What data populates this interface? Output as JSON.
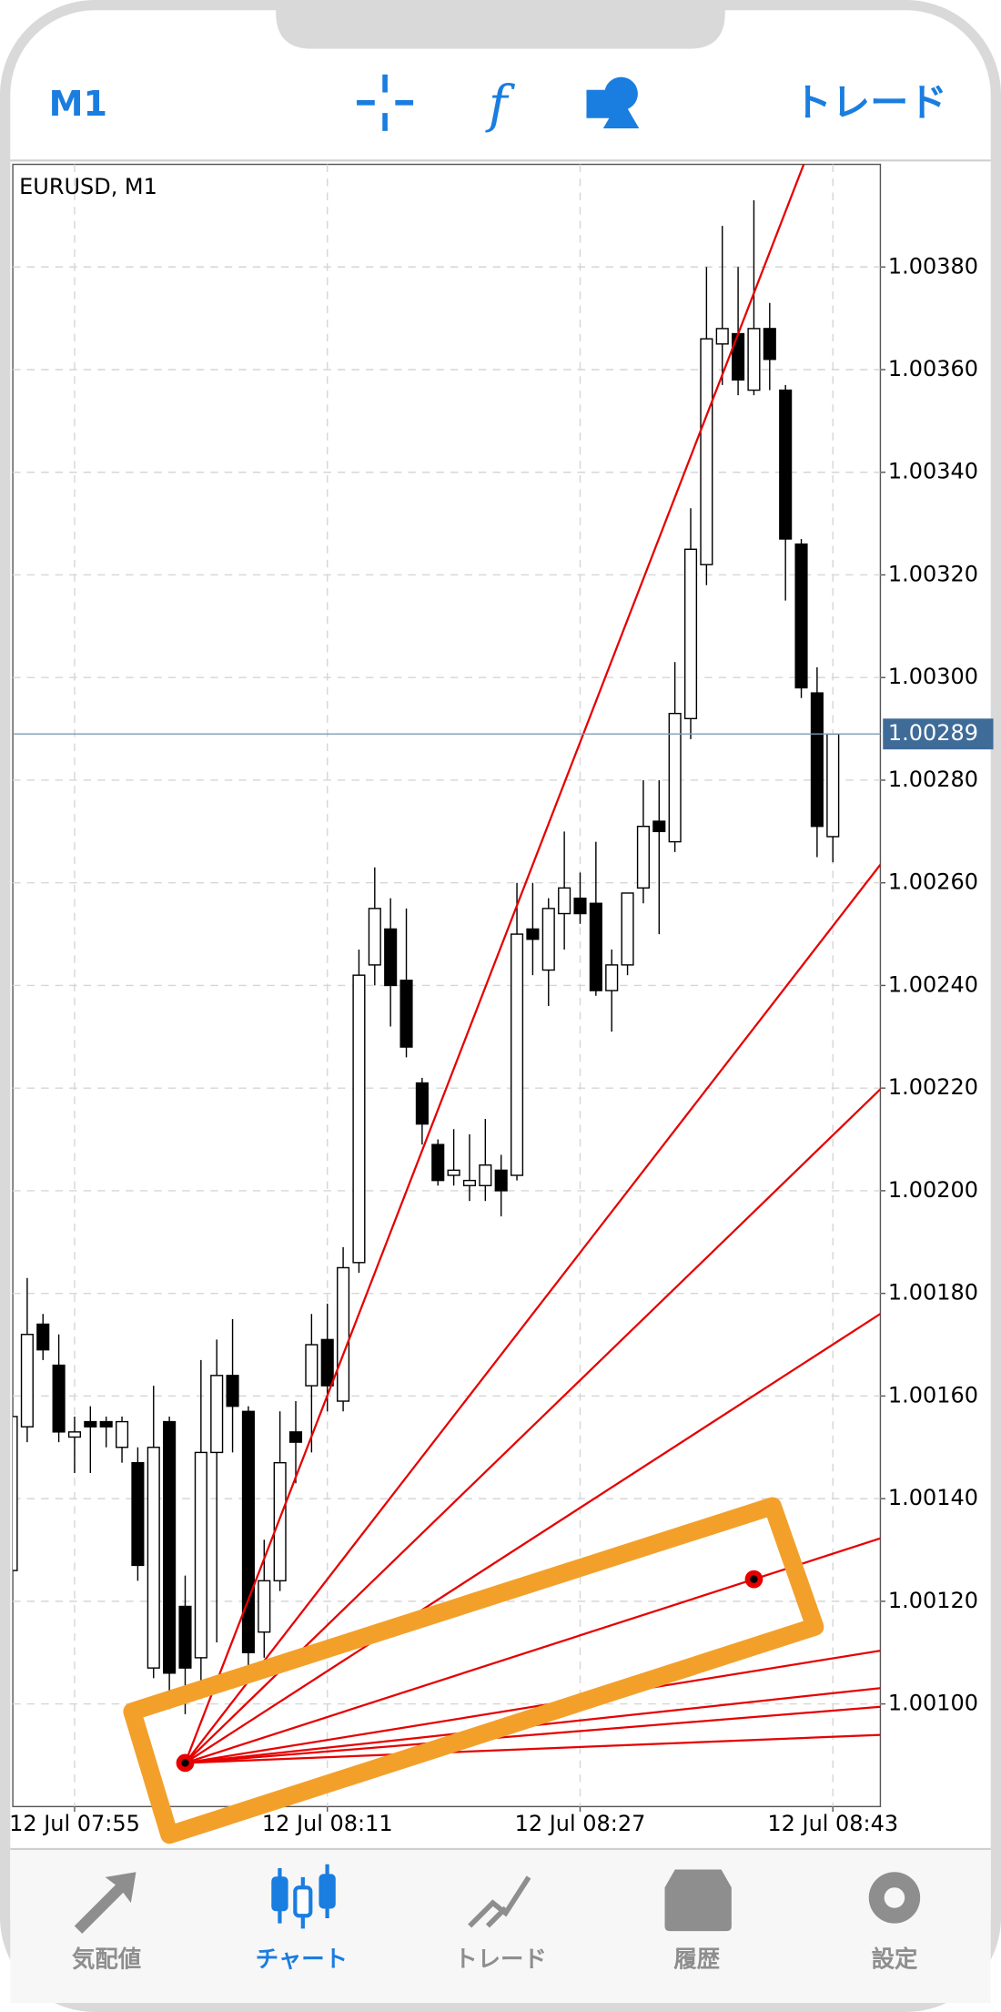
{
  "header": {
    "timeframe": "M1",
    "trade": "トレード"
  },
  "chart_data": {
    "type": "candlestick",
    "title": "EURUSD, M1",
    "x": [
      "12 Jul 07:51",
      "12 Jul 07:52",
      "12 Jul 07:53",
      "12 Jul 07:54",
      "12 Jul 07:55",
      "12 Jul 07:56",
      "12 Jul 07:57",
      "12 Jul 07:58",
      "12 Jul 07:59",
      "12 Jul 08:00",
      "12 Jul 08:01",
      "12 Jul 08:02",
      "12 Jul 08:03",
      "12 Jul 08:04",
      "12 Jul 08:05",
      "12 Jul 08:06",
      "12 Jul 08:07",
      "12 Jul 08:08",
      "12 Jul 08:09",
      "12 Jul 08:10",
      "12 Jul 08:11",
      "12 Jul 08:12",
      "12 Jul 08:13",
      "12 Jul 08:14",
      "12 Jul 08:15",
      "12 Jul 08:16",
      "12 Jul 08:17",
      "12 Jul 08:18",
      "12 Jul 08:19",
      "12 Jul 08:20",
      "12 Jul 08:21",
      "12 Jul 08:22",
      "12 Jul 08:23",
      "12 Jul 08:24",
      "12 Jul 08:25",
      "12 Jul 08:26",
      "12 Jul 08:27",
      "12 Jul 08:28",
      "12 Jul 08:29",
      "12 Jul 08:30",
      "12 Jul 08:31",
      "12 Jul 08:32",
      "12 Jul 08:33",
      "12 Jul 08:34",
      "12 Jul 08:35",
      "12 Jul 08:36",
      "12 Jul 08:37",
      "12 Jul 08:38",
      "12 Jul 08:39",
      "12 Jul 08:40",
      "12 Jul 08:41",
      "12 Jul 08:42",
      "12 Jul 08:43"
    ],
    "open": [
      1.00126,
      1.00154,
      1.00174,
      1.00166,
      1.00152,
      1.00155,
      1.00155,
      1.0015,
      1.00147,
      1.00107,
      1.00155,
      1.00119,
      1.00109,
      1.00149,
      1.00164,
      1.00157,
      1.00114,
      1.00124,
      1.00153,
      1.00162,
      1.00171,
      1.00159,
      1.00186,
      1.00244,
      1.00251,
      1.00241,
      1.00221,
      1.00209,
      1.00203,
      1.00201,
      1.00201,
      1.00204,
      1.00203,
      1.00251,
      1.00243,
      1.00254,
      1.00257,
      1.00256,
      1.00239,
      1.00244,
      1.00259,
      1.00272,
      1.00268,
      1.00292,
      1.00322,
      1.00365,
      1.00367,
      1.00356,
      1.00368,
      1.00356,
      1.00326,
      1.00297,
      1.00269
    ],
    "high": [
      1.00158,
      1.00183,
      1.00176,
      1.00172,
      1.00156,
      1.00158,
      1.00156,
      1.00156,
      1.0015,
      1.00162,
      1.00156,
      1.00125,
      1.00167,
      1.00171,
      1.00175,
      1.00158,
      1.00132,
      1.00157,
      1.00159,
      1.00176,
      1.00178,
      1.00189,
      1.00247,
      1.00263,
      1.00257,
      1.00255,
      1.00222,
      1.0021,
      1.00212,
      1.00211,
      1.00214,
      1.00207,
      1.0026,
      1.0026,
      1.00257,
      1.0027,
      1.00262,
      1.00268,
      1.00247,
      1.00258,
      1.0028,
      1.0028,
      1.00303,
      1.00333,
      1.0038,
      1.00388,
      1.0038,
      1.00393,
      1.00373,
      1.00357,
      1.00327,
      1.00302,
      1.00289
    ],
    "low": [
      1.00125,
      1.00151,
      1.00167,
      1.00151,
      1.00145,
      1.00145,
      1.0015,
      1.00147,
      1.00124,
      1.00105,
      1.00099,
      1.00098,
      1.00104,
      1.00112,
      1.00149,
      1.00107,
      1.00109,
      1.00122,
      1.00143,
      1.00149,
      1.00157,
      1.00157,
      1.00184,
      1.0024,
      1.00232,
      1.00226,
      1.00209,
      1.00201,
      1.00201,
      1.00198,
      1.00198,
      1.00195,
      1.00202,
      1.00242,
      1.00236,
      1.00247,
      1.00252,
      1.00238,
      1.00231,
      1.00242,
      1.00256,
      1.0025,
      1.00266,
      1.00288,
      1.00318,
      1.00357,
      1.00355,
      1.00355,
      1.00356,
      1.00315,
      1.00296,
      1.00265,
      1.00264
    ],
    "close": [
      1.00156,
      1.00172,
      1.00169,
      1.00153,
      1.00153,
      1.00154,
      1.00154,
      1.00155,
      1.00127,
      1.0015,
      1.00106,
      1.00107,
      1.00149,
      1.00164,
      1.00158,
      1.0011,
      1.00124,
      1.00147,
      1.00151,
      1.0017,
      1.00162,
      1.00185,
      1.00242,
      1.00255,
      1.0024,
      1.00228,
      1.00213,
      1.00202,
      1.00204,
      1.00202,
      1.00205,
      1.002,
      1.0025,
      1.00249,
      1.00255,
      1.00259,
      1.00254,
      1.00239,
      1.00244,
      1.00258,
      1.00271,
      1.0027,
      1.00293,
      1.00325,
      1.00366,
      1.00368,
      1.00358,
      1.00368,
      1.00362,
      1.00327,
      1.00298,
      1.00271,
      1.00289
    ],
    "ylim": [
      1.0008,
      1.004
    ],
    "yticks": [
      {
        "value": 1.001,
        "label": "1.00100"
      },
      {
        "value": 1.0012,
        "label": "1.00120"
      },
      {
        "value": 1.0014,
        "label": "1.00140"
      },
      {
        "value": 1.0016,
        "label": "1.00160"
      },
      {
        "value": 1.0018,
        "label": "1.00180"
      },
      {
        "value": 1.002,
        "label": "1.00200"
      },
      {
        "value": 1.0022,
        "label": "1.00220"
      },
      {
        "value": 1.0024,
        "label": "1.00240"
      },
      {
        "value": 1.0026,
        "label": "1.00260"
      },
      {
        "value": 1.0028,
        "label": "1.00280"
      },
      {
        "value": 1.003,
        "label": "1.00300"
      },
      {
        "value": 1.0032,
        "label": "1.00320"
      },
      {
        "value": 1.0034,
        "label": "1.00340"
      },
      {
        "value": 1.0036,
        "label": "1.00360"
      },
      {
        "value": 1.0038,
        "label": "1.00380"
      }
    ],
    "xticks": [
      "12 Jul 07:55",
      "12 Jul 08:11",
      "12 Jul 08:27",
      "12 Jul 08:43"
    ],
    "last_price": 1.00289,
    "grid": true,
    "gann_fan": {
      "color": "#e60000",
      "points": [
        {
          "x": "12 Jul 08:02",
          "price": 1.000885
        },
        {
          "x": "12 Jul 08:38",
          "price": 1.001243
        }
      ],
      "ratios": [
        8,
        4,
        3,
        2,
        1,
        0.5,
        0.3333,
        0.25,
        0.125
      ]
    }
  },
  "tabs": [
    "気配値",
    "チャート",
    "トレード",
    "履歴",
    "設定"
  ]
}
